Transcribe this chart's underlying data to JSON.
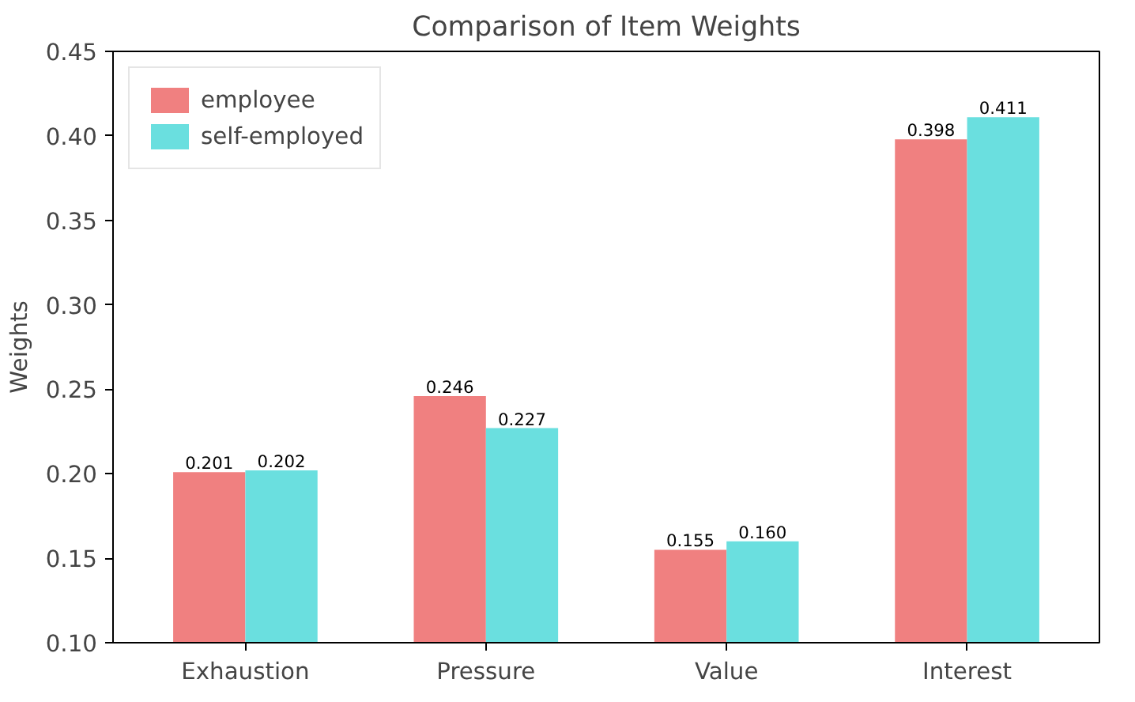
{
  "chart_data": {
    "type": "bar",
    "title": "Comparison of Item Weights",
    "ylabel": "Weights",
    "categories": [
      "Exhaustion",
      "Pressure",
      "Value",
      "Interest"
    ],
    "series": [
      {
        "name": "employee",
        "color": "#f08080",
        "values": [
          0.201,
          0.246,
          0.155,
          0.398
        ],
        "value_labels": [
          "0.201",
          "0.246",
          "0.155",
          "0.398"
        ]
      },
      {
        "name": "self-employed",
        "color": "#6adfdf",
        "values": [
          0.202,
          0.227,
          0.16,
          0.411
        ],
        "value_labels": [
          "0.202",
          "0.227",
          "0.160",
          "0.411"
        ]
      }
    ],
    "ylim": [
      0.1,
      0.45
    ],
    "yticks": [
      {
        "value": 0.1,
        "label": "0.10"
      },
      {
        "value": 0.15,
        "label": "0.15"
      },
      {
        "value": 0.2,
        "label": "0.20"
      },
      {
        "value": 0.25,
        "label": "0.25"
      },
      {
        "value": 0.3,
        "label": "0.30"
      },
      {
        "value": 0.35,
        "label": "0.35"
      },
      {
        "value": 0.4,
        "label": "0.40"
      },
      {
        "value": 0.45,
        "label": "0.45"
      }
    ],
    "grid": false,
    "legend": "top left"
  }
}
